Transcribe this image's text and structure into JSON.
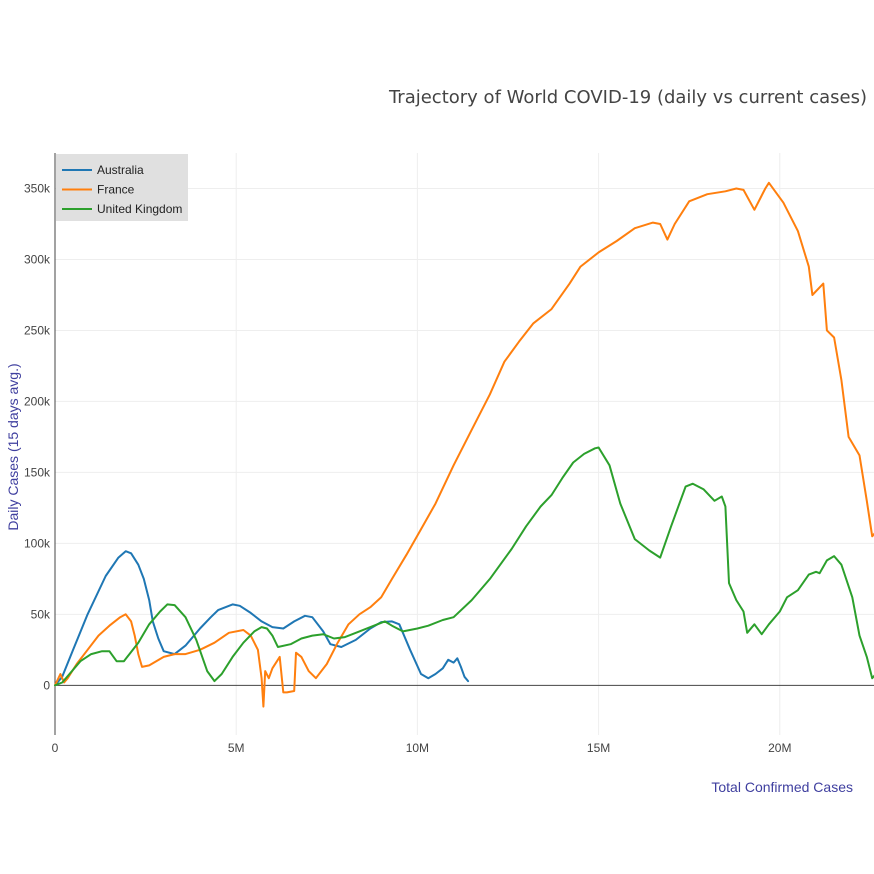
{
  "chart_data": {
    "type": "line",
    "title": "Trajectory of World COVID-19 (daily vs current cases)",
    "xlabel": "Total Confirmed Cases",
    "ylabel": "Daily Cases (15 days avg.)",
    "xlim": [
      0,
      22600000
    ],
    "ylim": [
      -35000,
      375000
    ],
    "x_ticks": [
      0,
      5000000,
      10000000,
      15000000,
      20000000
    ],
    "x_tick_labels": [
      "0",
      "5M",
      "10M",
      "15M",
      "20M"
    ],
    "y_ticks": [
      0,
      50000,
      100000,
      150000,
      200000,
      250000,
      300000,
      350000
    ],
    "y_tick_labels": [
      "0",
      "50k",
      "100k",
      "150k",
      "200k",
      "250k",
      "300k",
      "350k"
    ],
    "grid": true,
    "legend_position": "top-left",
    "series": [
      {
        "name": "Australia",
        "color": "#1f77b4",
        "points": [
          [
            0,
            0
          ],
          [
            200000,
            6000
          ],
          [
            500000,
            25000
          ],
          [
            900000,
            50000
          ],
          [
            1400000,
            77000
          ],
          [
            1750000,
            90000
          ],
          [
            1950000,
            94500
          ],
          [
            2100000,
            93000
          ],
          [
            2300000,
            85000
          ],
          [
            2450000,
            75000
          ],
          [
            2600000,
            60000
          ],
          [
            2700000,
            45000
          ],
          [
            2850000,
            33000
          ],
          [
            3000000,
            24000
          ],
          [
            3300000,
            22000
          ],
          [
            3600000,
            28000
          ],
          [
            4000000,
            40000
          ],
          [
            4300000,
            48000
          ],
          [
            4500000,
            53000
          ],
          [
            4900000,
            57000
          ],
          [
            5100000,
            56000
          ],
          [
            5400000,
            51000
          ],
          [
            5700000,
            45000
          ],
          [
            6000000,
            41000
          ],
          [
            6300000,
            40000
          ],
          [
            6600000,
            45000
          ],
          [
            6900000,
            49000
          ],
          [
            7100000,
            48000
          ],
          [
            7400000,
            38000
          ],
          [
            7600000,
            29000
          ],
          [
            7900000,
            27000
          ],
          [
            8300000,
            32000
          ],
          [
            8700000,
            40000
          ],
          [
            9000000,
            44500
          ],
          [
            9300000,
            45000
          ],
          [
            9500000,
            43000
          ],
          [
            9800000,
            25000
          ],
          [
            10100000,
            8000
          ],
          [
            10300000,
            5000
          ],
          [
            10500000,
            8000
          ],
          [
            10700000,
            12000
          ],
          [
            10850000,
            18000
          ],
          [
            11000000,
            16000
          ],
          [
            11100000,
            19000
          ],
          [
            11200000,
            13000
          ],
          [
            11300000,
            6000
          ],
          [
            11400000,
            3000
          ]
        ]
      },
      {
        "name": "France",
        "color": "#ff7f0e",
        "points": [
          [
            0,
            0
          ],
          [
            150000,
            8000
          ],
          [
            250000,
            2000
          ],
          [
            350000,
            5000
          ],
          [
            600000,
            15000
          ],
          [
            900000,
            25000
          ],
          [
            1200000,
            35000
          ],
          [
            1500000,
            42000
          ],
          [
            1800000,
            48000
          ],
          [
            1950000,
            50000
          ],
          [
            2100000,
            45000
          ],
          [
            2200000,
            35000
          ],
          [
            2300000,
            22000
          ],
          [
            2400000,
            13000
          ],
          [
            2600000,
            14000
          ],
          [
            3000000,
            20000
          ],
          [
            3300000,
            22000
          ],
          [
            3600000,
            22000
          ],
          [
            4000000,
            25000
          ],
          [
            4400000,
            30000
          ],
          [
            4800000,
            37000
          ],
          [
            5200000,
            39000
          ],
          [
            5400000,
            35000
          ],
          [
            5600000,
            25000
          ],
          [
            5700000,
            5000
          ],
          [
            5750000,
            -15000
          ],
          [
            5800000,
            10000
          ],
          [
            5900000,
            5000
          ],
          [
            6000000,
            12000
          ],
          [
            6200000,
            20000
          ],
          [
            6300000,
            -5000
          ],
          [
            6400000,
            -5000
          ],
          [
            6600000,
            -4000
          ],
          [
            6650000,
            23000
          ],
          [
            6800000,
            20000
          ],
          [
            7000000,
            10000
          ],
          [
            7200000,
            5000
          ],
          [
            7500000,
            15000
          ],
          [
            7800000,
            30000
          ],
          [
            8100000,
            43000
          ],
          [
            8400000,
            50000
          ],
          [
            8700000,
            55000
          ],
          [
            9000000,
            62000
          ],
          [
            9300000,
            75000
          ],
          [
            9700000,
            92000
          ],
          [
            10100000,
            110000
          ],
          [
            10500000,
            128000
          ],
          [
            11000000,
            155000
          ],
          [
            11500000,
            180000
          ],
          [
            12000000,
            205000
          ],
          [
            12400000,
            228000
          ],
          [
            12800000,
            242000
          ],
          [
            13200000,
            255000
          ],
          [
            13700000,
            265000
          ],
          [
            14200000,
            283000
          ],
          [
            14500000,
            295000
          ],
          [
            15000000,
            305000
          ],
          [
            15500000,
            313000
          ],
          [
            16000000,
            322000
          ],
          [
            16500000,
            326000
          ],
          [
            16700000,
            325000
          ],
          [
            16900000,
            314000
          ],
          [
            17100000,
            325000
          ],
          [
            17500000,
            341000
          ],
          [
            18000000,
            346000
          ],
          [
            18500000,
            348000
          ],
          [
            18800000,
            350000
          ],
          [
            19000000,
            349000
          ],
          [
            19300000,
            335000
          ],
          [
            19600000,
            350000
          ],
          [
            19700000,
            354000
          ],
          [
            20100000,
            340000
          ],
          [
            20500000,
            320000
          ],
          [
            20800000,
            295000
          ],
          [
            20900000,
            275000
          ],
          [
            21200000,
            283000
          ],
          [
            21300000,
            250000
          ],
          [
            21500000,
            245000
          ],
          [
            21700000,
            215000
          ],
          [
            21900000,
            175000
          ],
          [
            22200000,
            162000
          ],
          [
            22400000,
            130000
          ],
          [
            22550000,
            105000
          ],
          [
            22650000,
            108000
          ],
          [
            22700000,
            100000
          ]
        ]
      },
      {
        "name": "United Kingdom",
        "color": "#2ca02c",
        "points": [
          [
            0,
            0
          ],
          [
            200000,
            2000
          ],
          [
            400000,
            8000
          ],
          [
            700000,
            17000
          ],
          [
            1000000,
            22000
          ],
          [
            1300000,
            24000
          ],
          [
            1500000,
            24000
          ],
          [
            1700000,
            17000
          ],
          [
            1900000,
            17000
          ],
          [
            2300000,
            30000
          ],
          [
            2600000,
            43000
          ],
          [
            2900000,
            52000
          ],
          [
            3100000,
            57000
          ],
          [
            3300000,
            56500
          ],
          [
            3600000,
            48000
          ],
          [
            3900000,
            32000
          ],
          [
            4200000,
            10000
          ],
          [
            4400000,
            3000
          ],
          [
            4600000,
            8000
          ],
          [
            4900000,
            20000
          ],
          [
            5200000,
            30000
          ],
          [
            5500000,
            38000
          ],
          [
            5700000,
            41000
          ],
          [
            5850000,
            40000
          ],
          [
            6000000,
            35000
          ],
          [
            6150000,
            27000
          ],
          [
            6500000,
            29000
          ],
          [
            6800000,
            33000
          ],
          [
            7100000,
            35000
          ],
          [
            7400000,
            36000
          ],
          [
            7700000,
            33000
          ],
          [
            8000000,
            34000
          ],
          [
            8400000,
            38000
          ],
          [
            8800000,
            42000
          ],
          [
            9100000,
            45000
          ],
          [
            9300000,
            42000
          ],
          [
            9600000,
            38000
          ],
          [
            10000000,
            40000
          ],
          [
            10300000,
            42000
          ],
          [
            10700000,
            46000
          ],
          [
            11000000,
            48000
          ],
          [
            11500000,
            60000
          ],
          [
            12000000,
            75000
          ],
          [
            12600000,
            96000
          ],
          [
            13000000,
            112000
          ],
          [
            13400000,
            126000
          ],
          [
            13700000,
            134000
          ],
          [
            14000000,
            146000
          ],
          [
            14300000,
            157000
          ],
          [
            14600000,
            163000
          ],
          [
            14900000,
            167000
          ],
          [
            15000000,
            167500
          ],
          [
            15300000,
            155000
          ],
          [
            15600000,
            128000
          ],
          [
            16000000,
            103000
          ],
          [
            16400000,
            95000
          ],
          [
            16700000,
            90000
          ],
          [
            17000000,
            112000
          ],
          [
            17400000,
            140000
          ],
          [
            17600000,
            142000
          ],
          [
            17900000,
            138000
          ],
          [
            18200000,
            130000
          ],
          [
            18400000,
            133000
          ],
          [
            18500000,
            126000
          ],
          [
            18600000,
            72000
          ],
          [
            18800000,
            60000
          ],
          [
            19000000,
            52000
          ],
          [
            19100000,
            37000
          ],
          [
            19300000,
            43000
          ],
          [
            19500000,
            36000
          ],
          [
            19700000,
            43000
          ],
          [
            20000000,
            52000
          ],
          [
            20200000,
            62000
          ],
          [
            20500000,
            67000
          ],
          [
            20800000,
            78000
          ],
          [
            21000000,
            80000
          ],
          [
            21100000,
            79000
          ],
          [
            21300000,
            88000
          ],
          [
            21500000,
            91000
          ],
          [
            21700000,
            85000
          ],
          [
            22000000,
            62000
          ],
          [
            22200000,
            35000
          ],
          [
            22400000,
            20000
          ],
          [
            22550000,
            5000
          ],
          [
            22620000,
            7000
          ],
          [
            22700000,
            12000
          ]
        ]
      }
    ]
  }
}
